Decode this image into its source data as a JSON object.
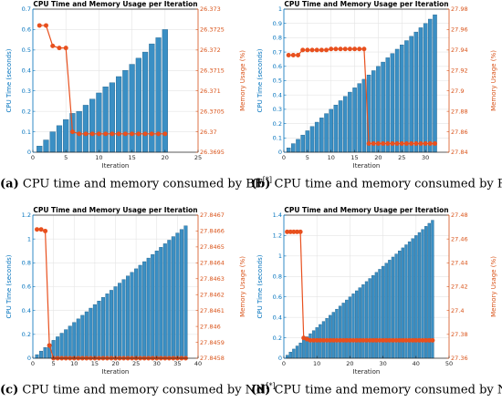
{
  "colors": {
    "bar": "#3a8fc4",
    "bar_edge": "#1f5f88",
    "line": "#e8501e",
    "left_axis": "#0072bd",
    "right_axis": "#d95319"
  },
  "captions": [
    {
      "letter": "(a)",
      "text": "CPU time and memory consumed by BF",
      "sup": "[*]"
    },
    {
      "letter": "(b)",
      "text": "CPU time and memory consumed by PM",
      "sup": "[*]"
    },
    {
      "letter": "(c)",
      "text": "CPU time and memory consumed by NN",
      "sup": "[*]"
    },
    {
      "letter": "(d)",
      "text": "CPU time and memory consumed by NF",
      "sup": "[*]"
    }
  ],
  "chart_data": [
    {
      "type": "bar",
      "title": "CPU Time and Memory Usage per Iteration",
      "xlabel": "Iteration",
      "ylabel": "CPU Time (seconds)",
      "y2label": "Memory Usage (%)",
      "xlim": [
        0,
        25
      ],
      "xticks": [
        "0",
        "5",
        "10",
        "15",
        "20",
        "25"
      ],
      "ylim": [
        0,
        0.7
      ],
      "yticks": [
        "0",
        "0.1",
        "0.2",
        "0.3",
        "0.4",
        "0.5",
        "0.6",
        "0.7"
      ],
      "y2lim": [
        26.3695,
        26.373
      ],
      "y2ticks": [
        "26.3695",
        "26.37",
        "26.3705",
        "26.371",
        "26.3715",
        "26.372",
        "26.3725",
        "26.373"
      ],
      "x": [
        1,
        2,
        3,
        4,
        5,
        6,
        7,
        8,
        9,
        10,
        11,
        12,
        13,
        14,
        15,
        16,
        17,
        18,
        19,
        20
      ],
      "cpu_time": [
        0.03,
        0.06,
        0.1,
        0.13,
        0.16,
        0.19,
        0.2,
        0.23,
        0.26,
        0.29,
        0.32,
        0.34,
        0.37,
        0.4,
        0.43,
        0.46,
        0.49,
        0.53,
        0.56,
        0.6
      ],
      "memory": [
        26.3726,
        26.3726,
        26.3721,
        26.37205,
        26.37205,
        26.37,
        26.36995,
        26.36995,
        26.36995,
        26.36995,
        26.36995,
        26.36995,
        26.36995,
        26.36995,
        26.36995,
        26.36995,
        26.36995,
        26.36995,
        26.36995,
        26.36995
      ]
    },
    {
      "type": "bar",
      "title": "CPU Time and Memory Usage per Iteration",
      "xlabel": "Iteration",
      "ylabel": "CPU Time (seconds)",
      "y2label": "Memory Usage (%)",
      "xlim": [
        0,
        35
      ],
      "xticks": [
        "0",
        "5",
        "10",
        "15",
        "20",
        "25",
        "30"
      ],
      "ylim": [
        0,
        1.0
      ],
      "yticks": [
        "0",
        "0.1",
        "0.2",
        "0.3",
        "0.4",
        "0.5",
        "0.6",
        "0.7",
        "0.8",
        "0.9",
        "1"
      ],
      "y2lim": [
        27.84,
        27.98
      ],
      "y2ticks": [
        "27.84",
        "27.86",
        "27.88",
        "27.9",
        "27.92",
        "27.94",
        "27.96",
        "27.98"
      ],
      "x": [
        1,
        2,
        3,
        4,
        5,
        6,
        7,
        8,
        9,
        10,
        11,
        12,
        13,
        14,
        15,
        16,
        17,
        18,
        19,
        20,
        21,
        22,
        23,
        24,
        25,
        26,
        27,
        28,
        29,
        30,
        31,
        32
      ],
      "cpu_time": [
        0.03,
        0.06,
        0.09,
        0.12,
        0.15,
        0.18,
        0.21,
        0.24,
        0.27,
        0.3,
        0.33,
        0.36,
        0.39,
        0.42,
        0.45,
        0.48,
        0.51,
        0.54,
        0.57,
        0.6,
        0.63,
        0.66,
        0.69,
        0.72,
        0.75,
        0.78,
        0.81,
        0.84,
        0.87,
        0.9,
        0.93,
        0.96
      ],
      "memory": [
        27.935,
        27.935,
        27.935,
        27.94,
        27.94,
        27.94,
        27.94,
        27.94,
        27.94,
        27.941,
        27.941,
        27.941,
        27.941,
        27.941,
        27.941,
        27.941,
        27.941,
        27.8485,
        27.8485,
        27.8485,
        27.8485,
        27.8485,
        27.8485,
        27.8485,
        27.8485,
        27.8485,
        27.8485,
        27.8485,
        27.8485,
        27.8485,
        27.8485,
        27.8485
      ]
    },
    {
      "type": "bar",
      "title": "CPU Time and Memory Usage per Iteration",
      "xlabel": "Iteration",
      "ylabel": "CPU Time (seconds)",
      "y2label": "Memory Usage (%)",
      "xlim": [
        0,
        40
      ],
      "xticks": [
        "0",
        "5",
        "10",
        "15",
        "20",
        "25",
        "30",
        "35",
        "40"
      ],
      "ylim": [
        0,
        1.2
      ],
      "yticks": [
        "0",
        "0.2",
        "0.4",
        "0.6",
        "0.8",
        "1",
        "1.2"
      ],
      "y2lim": [
        27.8458,
        27.8467
      ],
      "y2ticks": [
        "27.8458",
        "27.8459",
        "27.846",
        "27.8461",
        "27.8462",
        "27.8463",
        "27.8464",
        "27.8465",
        "27.8466",
        "27.8467"
      ],
      "x": [
        1,
        2,
        3,
        4,
        5,
        6,
        7,
        8,
        9,
        10,
        11,
        12,
        13,
        14,
        15,
        16,
        17,
        18,
        19,
        20,
        21,
        22,
        23,
        24,
        25,
        26,
        27,
        28,
        29,
        30,
        31,
        32,
        33,
        34,
        35,
        36,
        37
      ],
      "cpu_time": [
        0.03,
        0.06,
        0.09,
        0.12,
        0.15,
        0.18,
        0.21,
        0.24,
        0.27,
        0.3,
        0.33,
        0.36,
        0.39,
        0.42,
        0.45,
        0.48,
        0.51,
        0.54,
        0.57,
        0.6,
        0.63,
        0.66,
        0.69,
        0.72,
        0.75,
        0.78,
        0.81,
        0.84,
        0.87,
        0.9,
        0.93,
        0.96,
        0.99,
        1.02,
        1.05,
        1.08,
        1.11
      ],
      "memory": [
        27.84661,
        27.84661,
        27.8466,
        27.84588,
        27.8458,
        27.8458,
        27.8458,
        27.8458,
        27.8458,
        27.8458,
        27.8458,
        27.8458,
        27.8458,
        27.8458,
        27.8458,
        27.8458,
        27.8458,
        27.8458,
        27.8458,
        27.8458,
        27.8458,
        27.8458,
        27.8458,
        27.8458,
        27.8458,
        27.8458,
        27.8458,
        27.8458,
        27.8458,
        27.8458,
        27.8458,
        27.8458,
        27.8458,
        27.8458,
        27.8458,
        27.8458,
        27.8458
      ]
    },
    {
      "type": "bar",
      "title": "CPU Time and Memory Usage per Iteration",
      "xlabel": "Iteration",
      "ylabel": "CPU Time (seconds)",
      "y2label": "Memory Usage (%)",
      "xlim": [
        0,
        50
      ],
      "xticks": [
        "0",
        "10",
        "20",
        "30",
        "40",
        "50"
      ],
      "ylim": [
        0,
        1.4
      ],
      "yticks": [
        "0",
        "0.2",
        "0.4",
        "0.6",
        "0.8",
        "1",
        "1.2",
        "1.4"
      ],
      "y2lim": [
        27.36,
        27.48
      ],
      "y2ticks": [
        "27.36",
        "27.38",
        "27.4",
        "27.42",
        "27.44",
        "27.46",
        "27.48"
      ],
      "x": [
        1,
        2,
        3,
        4,
        5,
        6,
        7,
        8,
        9,
        10,
        11,
        12,
        13,
        14,
        15,
        16,
        17,
        18,
        19,
        20,
        21,
        22,
        23,
        24,
        25,
        26,
        27,
        28,
        29,
        30,
        31,
        32,
        33,
        34,
        35,
        36,
        37,
        38,
        39,
        40,
        41,
        42,
        43,
        44,
        45
      ],
      "cpu_time": [
        0.03,
        0.06,
        0.09,
        0.12,
        0.15,
        0.18,
        0.21,
        0.24,
        0.27,
        0.3,
        0.33,
        0.36,
        0.39,
        0.42,
        0.45,
        0.48,
        0.51,
        0.54,
        0.57,
        0.6,
        0.63,
        0.66,
        0.69,
        0.72,
        0.75,
        0.78,
        0.81,
        0.84,
        0.87,
        0.9,
        0.93,
        0.96,
        0.99,
        1.02,
        1.05,
        1.08,
        1.11,
        1.14,
        1.17,
        1.2,
        1.23,
        1.26,
        1.29,
        1.32,
        1.35
      ],
      "memory": [
        27.466,
        27.466,
        27.466,
        27.466,
        27.466,
        27.377,
        27.376,
        27.375,
        27.375,
        27.375,
        27.375,
        27.375,
        27.375,
        27.375,
        27.375,
        27.375,
        27.375,
        27.375,
        27.375,
        27.375,
        27.375,
        27.375,
        27.375,
        27.375,
        27.375,
        27.375,
        27.375,
        27.375,
        27.375,
        27.375,
        27.375,
        27.375,
        27.375,
        27.375,
        27.375,
        27.375,
        27.375,
        27.375,
        27.375,
        27.375,
        27.375,
        27.375,
        27.375,
        27.375,
        27.375
      ]
    }
  ]
}
